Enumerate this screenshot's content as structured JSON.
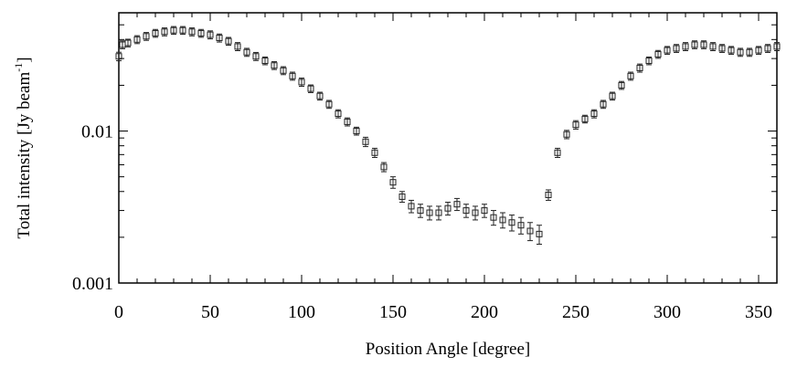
{
  "chart_data": {
    "type": "scatter",
    "title": "",
    "xlabel": "Position Angle [degree]",
    "ylabel_main": "Total intensity [Jy beam",
    "ylabel_sup": "-1",
    "ylabel_end": "]",
    "xlim": [
      0,
      360
    ],
    "ylim": [
      0.001,
      0.06
    ],
    "yscale": "log",
    "grid": false,
    "legend": "none",
    "marker": "open-square-with-errorbars",
    "x_ticks": [
      0,
      50,
      100,
      150,
      200,
      250,
      300,
      350
    ],
    "x_tick_labels": [
      "0",
      "50",
      "100",
      "150",
      "200",
      "250",
      "300",
      "350"
    ],
    "y_ticks": [
      0.001,
      0.01
    ],
    "y_tick_labels": [
      "0.001",
      "0.01"
    ],
    "series": [
      {
        "x": [
          0,
          2,
          5,
          10,
          15,
          20,
          25,
          30,
          35,
          40,
          45,
          50,
          55,
          60,
          65,
          70,
          75,
          80,
          85,
          90,
          95,
          100,
          105,
          110,
          115,
          120,
          125,
          130,
          135,
          140,
          145,
          150,
          155,
          160,
          165,
          170,
          175,
          180,
          185,
          190,
          195,
          200,
          205,
          210,
          215,
          220,
          225,
          230,
          235,
          240,
          245,
          250,
          255,
          260,
          265,
          270,
          275,
          280,
          285,
          290,
          295,
          300,
          305,
          310,
          315,
          320,
          325,
          330,
          335,
          340,
          345,
          350,
          355,
          360
        ],
        "y": [
          0.031,
          0.037,
          0.038,
          0.04,
          0.042,
          0.044,
          0.045,
          0.046,
          0.046,
          0.045,
          0.044,
          0.043,
          0.041,
          0.039,
          0.036,
          0.033,
          0.031,
          0.029,
          0.027,
          0.025,
          0.023,
          0.021,
          0.019,
          0.017,
          0.015,
          0.013,
          0.0115,
          0.01,
          0.0085,
          0.0072,
          0.0058,
          0.0046,
          0.0037,
          0.0032,
          0.003,
          0.0029,
          0.0029,
          0.0031,
          0.0033,
          0.003,
          0.0029,
          0.003,
          0.0027,
          0.0026,
          0.0025,
          0.0024,
          0.0022,
          0.0021,
          0.0038,
          0.0072,
          0.0095,
          0.011,
          0.012,
          0.013,
          0.015,
          0.017,
          0.02,
          0.023,
          0.026,
          0.029,
          0.032,
          0.034,
          0.035,
          0.036,
          0.037,
          0.037,
          0.036,
          0.035,
          0.034,
          0.033,
          0.033,
          0.034,
          0.035,
          0.036
        ],
        "yerr": [
          0.002,
          0.0022,
          0.0022,
          0.0024,
          0.0025,
          0.0026,
          0.0027,
          0.0027,
          0.0027,
          0.0027,
          0.0026,
          0.0026,
          0.0025,
          0.0023,
          0.0022,
          0.002,
          0.0019,
          0.0017,
          0.0016,
          0.0015,
          0.0014,
          0.0013,
          0.0011,
          0.001,
          0.0009,
          0.0008,
          0.0007,
          0.0006,
          0.0006,
          0.0005,
          0.0004,
          0.0004,
          0.0003,
          0.0003,
          0.0003,
          0.0003,
          0.0003,
          0.0003,
          0.0003,
          0.0003,
          0.0003,
          0.0003,
          0.0003,
          0.0003,
          0.0003,
          0.0003,
          0.0003,
          0.0003,
          0.0003,
          0.0005,
          0.0006,
          0.0007,
          0.0007,
          0.0008,
          0.0009,
          0.001,
          0.0012,
          0.0014,
          0.0016,
          0.0017,
          0.0019,
          0.002,
          0.0021,
          0.0022,
          0.0022,
          0.0022,
          0.0022,
          0.0021,
          0.002,
          0.002,
          0.002,
          0.002,
          0.0021,
          0.0022
        ]
      }
    ]
  }
}
